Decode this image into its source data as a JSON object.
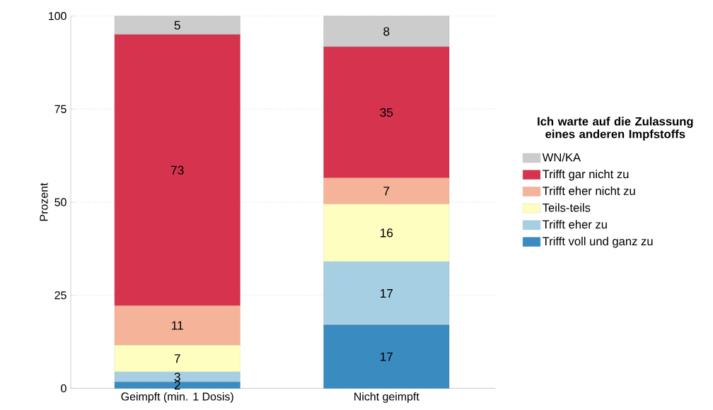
{
  "chart_data": {
    "type": "bar",
    "stacked": true,
    "ylabel": "Prozent",
    "legend_title": "Ich warte auf die Zulassung eines anderen Impfstoffs",
    "categories": [
      "Geimpft (min. 1 Dosis)",
      "Nicht geimpft"
    ],
    "series": [
      {
        "name": "Trifft voll und ganz zu",
        "color": "#3a8bc0",
        "values": [
          1.7,
          17
        ],
        "value_labels": [
          "2",
          "17"
        ]
      },
      {
        "name": "Trifft eher zu",
        "color": "#a6cfe3",
        "values": [
          2.7,
          17
        ],
        "value_labels": [
          "3",
          "17"
        ]
      },
      {
        "name": "Teils-teils",
        "color": "#fefec0",
        "values": [
          7.2,
          15.5
        ],
        "value_labels": [
          "7",
          "16"
        ]
      },
      {
        "name": "Trifft eher nicht zu",
        "color": "#f5b49a",
        "values": [
          10.6,
          7
        ],
        "value_labels": [
          "11",
          "7"
        ]
      },
      {
        "name": "Trifft gar nicht zu",
        "color": "#d6334e",
        "values": [
          72.8,
          35.2
        ],
        "value_labels": [
          "73",
          "35"
        ]
      },
      {
        "name": "WN/KA",
        "color": "#cccccc",
        "values": [
          5,
          8.3
        ],
        "value_labels": [
          "5",
          "8"
        ]
      }
    ],
    "ylim": [
      0,
      100
    ],
    "yticks": [
      0,
      25,
      50,
      75,
      100
    ],
    "grid": "y",
    "legend": "right"
  }
}
